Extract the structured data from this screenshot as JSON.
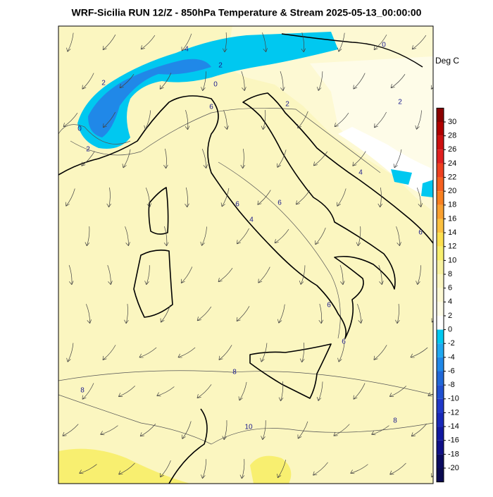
{
  "map": {
    "title": "WRF-Sicilia RUN 12/Z - 850hPa Temperature & Stream 2025-05-13_00:00:00",
    "colorbar": {
      "label": "Deg C",
      "ticks": [
        30,
        28,
        26,
        24,
        22,
        20,
        18,
        16,
        14,
        12,
        10,
        8,
        6,
        4,
        2,
        0,
        -2,
        -4,
        -6,
        -8,
        -10,
        -12,
        -14,
        -16,
        -18,
        -20
      ],
      "colors": [
        "#b00000",
        "#cc1010",
        "#e02020",
        "#ee4020",
        "#f56020",
        "#f88020",
        "#f9a030",
        "#fbc040",
        "#fde050",
        "#f8ef70",
        "#f8f2a0",
        "#fbf6c0",
        "#fdf9d3",
        "#fefce8",
        "#ffffff",
        "#00c8f0",
        "#20a8f0",
        "#2088e8",
        "#2068d8",
        "#2050d0",
        "#2038c8",
        "#1828b8",
        "#1018a0",
        "#101088",
        "#0a0a60"
      ],
      "above_color": "#8b0000",
      "below_color": "#0a0a50"
    },
    "contour_labels": [
      4,
      2,
      0,
      2,
      2,
      0,
      0,
      6,
      2,
      2,
      4,
      6,
      6,
      4,
      6,
      6,
      6,
      8,
      8,
      10,
      8
    ]
  }
}
